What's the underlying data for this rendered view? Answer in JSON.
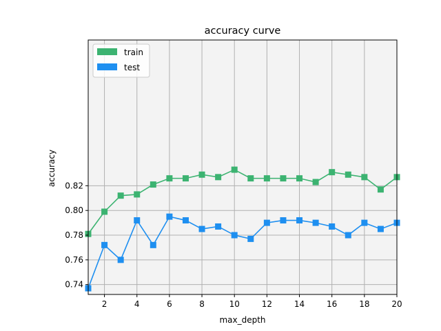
{
  "chart_data": {
    "type": "line",
    "title": "accuracy curve",
    "xlabel": "max_depth",
    "ylabel": "accuracy",
    "xlim": [
      1,
      20
    ],
    "ylim": [
      0.732,
      0.938
    ],
    "xticks": [
      2,
      4,
      6,
      8,
      10,
      12,
      14,
      16,
      18,
      20
    ],
    "yticks": [
      0.74,
      0.76,
      0.78,
      0.8,
      0.82
    ],
    "ytick_labels": [
      "0.74",
      "0.76",
      "0.78",
      "0.80",
      "0.82"
    ],
    "grid": true,
    "legend_position": "upper-left",
    "background": "#f3f3f3",
    "x": [
      1,
      2,
      3,
      4,
      5,
      6,
      7,
      8,
      9,
      10,
      11,
      12,
      13,
      14,
      15,
      16,
      17,
      18,
      19,
      20
    ],
    "series": [
      {
        "name": "train",
        "color": "#3cb371",
        "marker": "square",
        "values": [
          0.781,
          0.799,
          0.812,
          0.813,
          0.821,
          0.826,
          0.826,
          0.829,
          0.827,
          0.833,
          0.826,
          0.826,
          0.826,
          0.826,
          0.823,
          0.831,
          0.829,
          0.827,
          0.817,
          0.827
        ]
      },
      {
        "name": "test",
        "color": "#1e8ff0",
        "marker": "square",
        "values": [
          0.737,
          0.772,
          0.76,
          0.792,
          0.772,
          0.795,
          0.792,
          0.785,
          0.787,
          0.78,
          0.777,
          0.79,
          0.792,
          0.792,
          0.79,
          0.787,
          0.78,
          0.79,
          0.785,
          0.79
        ]
      }
    ]
  }
}
